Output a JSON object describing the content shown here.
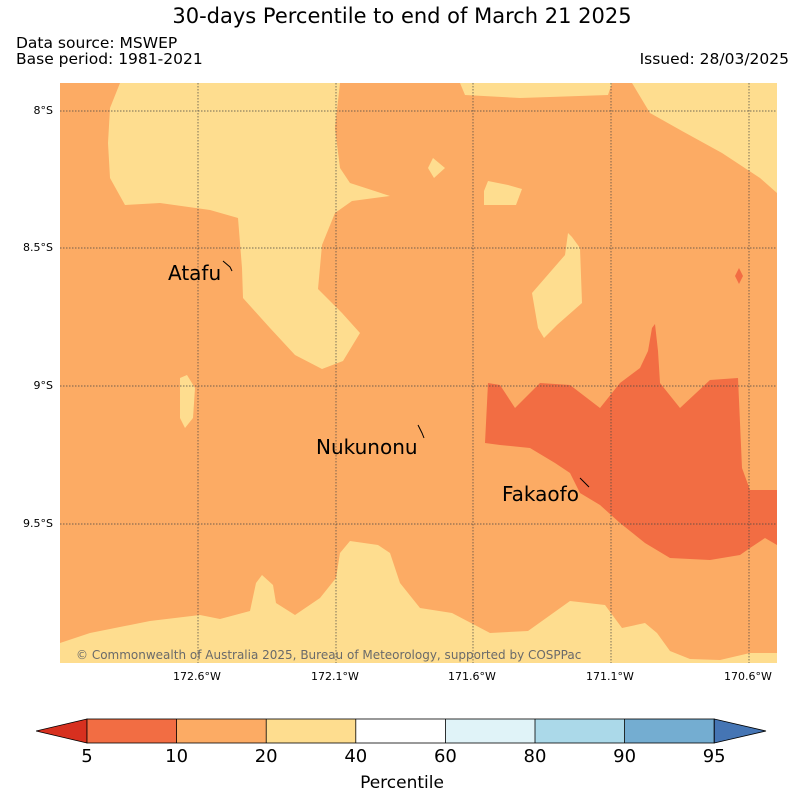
{
  "title": "30-days Percentile to end of March 21 2025",
  "source_line": "Data source: MSWEP",
  "base_line": "Base period: 1981-2021",
  "issued_line": "Issued: 28/03/2025",
  "copyright": "© Commonwealth of Australia 2025, Bureau of Meteorology, supported by COSPPac",
  "lat_ticks": [
    "8°S",
    "8.5°S",
    "9°S",
    "9.5°S"
  ],
  "lon_ticks": [
    "172.6°W",
    "172.1°W",
    "171.6°W",
    "171.1°W",
    "170.6°W"
  ],
  "islands": {
    "atafu": "Atafu",
    "nukunonu": "Nukunonu",
    "fakaofo": "Fakaofo"
  },
  "colorbar": {
    "label": "Percentile",
    "ticks": [
      "5",
      "10",
      "20",
      "40",
      "60",
      "80",
      "90",
      "95"
    ],
    "colors": {
      "below_5": "#d7301f",
      "5_10": "#f26d43",
      "10_20": "#fcab64",
      "20_40": "#fedd8f",
      "40_60": "#ffffff",
      "60_80": "#e0f3f8",
      "80_90": "#abd9e9",
      "90_95": "#74add1",
      "above_95": "#4575b4"
    }
  }
}
